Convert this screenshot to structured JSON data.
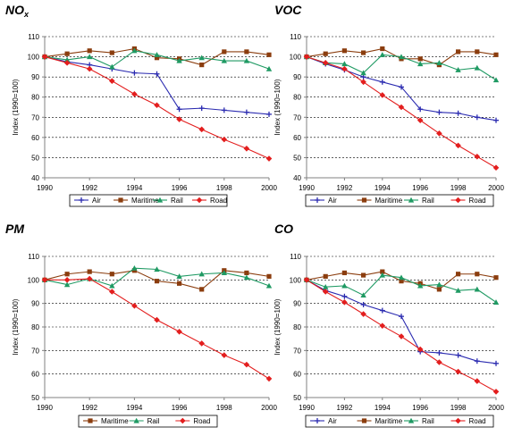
{
  "chart_data": [
    {
      "type": "line",
      "title": "NO",
      "title_sub": "x",
      "ylabel": "Index (1990=100)",
      "x": [
        1990,
        1991,
        1992,
        1993,
        1994,
        1995,
        1996,
        1997,
        1998,
        1999,
        2000
      ],
      "xticks": [
        "1990",
        "1992",
        "1994",
        "1996",
        "1998",
        "2000"
      ],
      "ylim": [
        40,
        110
      ],
      "yticks": [
        "40",
        "50",
        "60",
        "70",
        "80",
        "90",
        "100",
        "110"
      ],
      "grid": "horizontal dashed",
      "legend": "bottom",
      "series": [
        {
          "name": "Air",
          "color": "#2a2ab0",
          "marker": "plus",
          "values": [
            100,
            97.5,
            96,
            94,
            92,
            91.5,
            74,
            74.5,
            73.5,
            72.5,
            71.5
          ]
        },
        {
          "name": "Maritime",
          "color": "#8b3d0e",
          "marker": "square",
          "values": [
            100,
            101.5,
            103,
            102,
            104,
            99.5,
            99,
            96,
            102.5,
            102.5,
            101
          ]
        },
        {
          "name": "Rail",
          "color": "#1f9a63",
          "marker": "triangle",
          "values": [
            100,
            98.5,
            100,
            95,
            103,
            101,
            98,
            99.5,
            98,
            98,
            94
          ]
        },
        {
          "name": "Road",
          "color": "#e31e1e",
          "marker": "diamond",
          "values": [
            100,
            97,
            94,
            88,
            81.5,
            76,
            69,
            64,
            59,
            54.5,
            49.5
          ]
        }
      ]
    },
    {
      "type": "line",
      "title": "VOC",
      "ylabel": "Index (1990=100)",
      "x": [
        1990,
        1991,
        1992,
        1993,
        1994,
        1995,
        1996,
        1997,
        1998,
        1999,
        2000
      ],
      "xticks": [
        "1990",
        "1992",
        "1994",
        "1996",
        "1998",
        "2000"
      ],
      "ylim": [
        40,
        110
      ],
      "yticks": [
        "40",
        "50",
        "60",
        "70",
        "80",
        "90",
        "100",
        "110"
      ],
      "grid": "horizontal dashed",
      "legend": "bottom",
      "series": [
        {
          "name": "Air",
          "color": "#2a2ab0",
          "marker": "plus",
          "values": [
            100,
            96.5,
            93.5,
            90,
            87.5,
            85,
            74,
            72.5,
            72,
            70,
            68.5
          ]
        },
        {
          "name": "Maritime",
          "color": "#8b3d0e",
          "marker": "square",
          "values": [
            100,
            101.5,
            103,
            102,
            104,
            99,
            99,
            96,
            102.5,
            102.5,
            101
          ]
        },
        {
          "name": "Rail",
          "color": "#1f9a63",
          "marker": "triangle",
          "values": [
            100,
            97,
            96.5,
            92,
            101,
            100,
            96.5,
            97,
            93.5,
            94.5,
            88.5
          ]
        },
        {
          "name": "Road",
          "color": "#e31e1e",
          "marker": "diamond",
          "values": [
            100,
            97,
            94,
            87.5,
            81,
            75,
            68.5,
            62,
            56,
            50.5,
            45
          ]
        }
      ]
    },
    {
      "type": "line",
      "title": "PM",
      "ylabel": "Index (1990=100)",
      "x": [
        1990,
        1991,
        1992,
        1993,
        1994,
        1995,
        1996,
        1997,
        1998,
        1999,
        2000
      ],
      "xticks": [
        "1990",
        "1992",
        "1994",
        "1996",
        "1998",
        "2000"
      ],
      "ylim": [
        50,
        110
      ],
      "yticks": [
        "50",
        "60",
        "70",
        "80",
        "90",
        "100",
        "110"
      ],
      "grid": "horizontal dashed",
      "legend": "bottom",
      "series": [
        {
          "name": "Maritime",
          "color": "#8b3d0e",
          "marker": "square",
          "values": [
            100,
            102.5,
            103.5,
            102.5,
            104,
            99.5,
            98.5,
            96,
            104,
            103,
            101.5
          ]
        },
        {
          "name": "Rail",
          "color": "#1f9a63",
          "marker": "triangle",
          "values": [
            100,
            98,
            100.5,
            97.5,
            105,
            104.5,
            101.5,
            102.5,
            103,
            101,
            97.5
          ]
        },
        {
          "name": "Road",
          "color": "#e31e1e",
          "marker": "diamond",
          "values": [
            100,
            100,
            100.5,
            95,
            89,
            83,
            78,
            73,
            68,
            64,
            58
          ]
        }
      ]
    },
    {
      "type": "line",
      "title": "CO",
      "ylabel": "Index (1990=100)",
      "x": [
        1990,
        1991,
        1992,
        1993,
        1994,
        1995,
        1996,
        1997,
        1998,
        1999,
        2000
      ],
      "xticks": [
        "1990",
        "1992",
        "1994",
        "1996",
        "1998",
        "2000"
      ],
      "ylim": [
        50,
        110
      ],
      "yticks": [
        "50",
        "60",
        "70",
        "80",
        "90",
        "100",
        "110"
      ],
      "grid": "horizontal dashed",
      "legend": "bottom",
      "series": [
        {
          "name": "Air",
          "color": "#2a2ab0",
          "marker": "plus",
          "values": [
            100,
            95.5,
            93,
            89.5,
            87,
            84.5,
            69.5,
            69,
            68,
            65.5,
            64.5
          ]
        },
        {
          "name": "Maritime",
          "color": "#8b3d0e",
          "marker": "square",
          "values": [
            100,
            101.5,
            103,
            102,
            103.5,
            99.5,
            98.5,
            96,
            102.5,
            102.5,
            101
          ]
        },
        {
          "name": "Rail",
          "color": "#1f9a63",
          "marker": "triangle",
          "values": [
            100,
            97,
            97.5,
            93.5,
            102,
            101,
            97.5,
            98,
            95.5,
            96,
            90.5
          ]
        },
        {
          "name": "Road",
          "color": "#e31e1e",
          "marker": "diamond",
          "values": [
            100,
            95,
            90.5,
            85.5,
            80.5,
            76,
            70.5,
            65,
            61,
            57,
            52.5
          ]
        }
      ]
    }
  ]
}
